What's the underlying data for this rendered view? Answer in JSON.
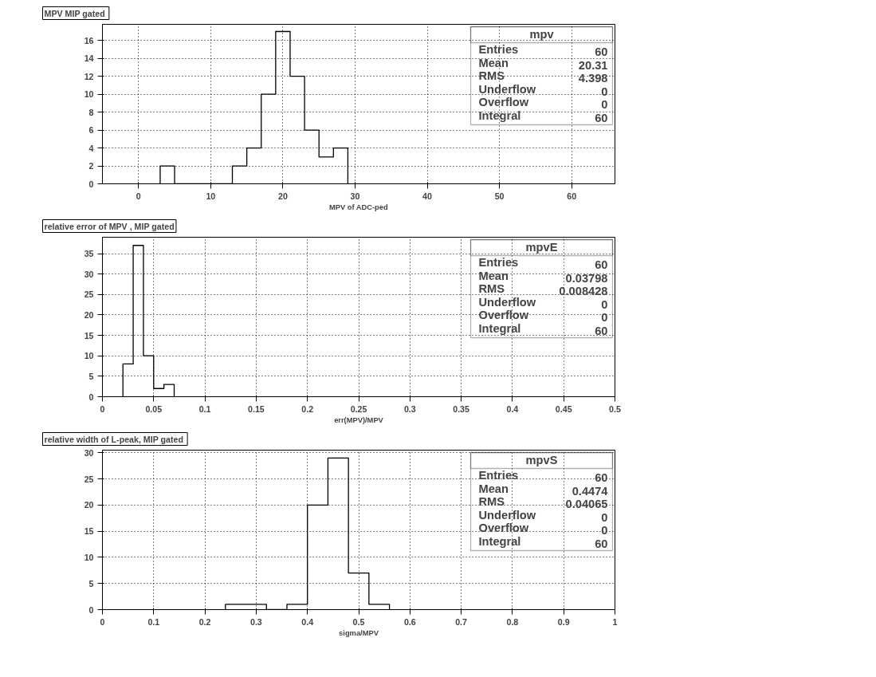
{
  "chart_data": [
    {
      "type": "histogram",
      "title": "MPV  MIP gated",
      "xlabel": "MPV of ADC-ped",
      "bins": [
        3,
        5,
        7,
        9,
        11,
        13,
        15,
        17,
        19,
        21,
        23,
        25,
        27,
        29
      ],
      "values": [
        2,
        0,
        0,
        0,
        0,
        2,
        4,
        10,
        17,
        12,
        6,
        3,
        4
      ],
      "color": "#000000",
      "xlim": [
        -5,
        66
      ],
      "ylim": [
        0,
        17.8
      ],
      "xticks": [
        0,
        10,
        20,
        30,
        40,
        50,
        60
      ],
      "yticks": [
        0,
        2,
        4,
        6,
        8,
        10,
        12,
        14,
        16
      ],
      "grid": true,
      "annotations": [
        "mpv",
        "Entries 60",
        "Mean 20.31",
        "RMS 4.398",
        "Underflow 0",
        "Overflow 0",
        "Integral 60"
      ]
    },
    {
      "type": "histogram",
      "title": "relative error of MPV , MIP gated",
      "xlabel": "err(MPV)/MPV",
      "bins": [
        0.02,
        0.03,
        0.04,
        0.05,
        0.06,
        0.07
      ],
      "values": [
        8,
        37,
        10,
        2,
        3
      ],
      "color": "#000000",
      "xlim": [
        0,
        0.5
      ],
      "ylim": [
        0,
        39
      ],
      "xticks": [
        0,
        0.05,
        0.1,
        0.15,
        0.2,
        0.25,
        0.3,
        0.35,
        0.4,
        0.45,
        0.5
      ],
      "yticks": [
        0,
        5,
        10,
        15,
        20,
        25,
        30,
        35
      ],
      "grid": true,
      "annotations": [
        "mpvE",
        "Entries 60",
        "Mean 0.03798",
        "RMS 0.008428",
        "Underflow 0",
        "Overflow 0",
        "Integral 60"
      ]
    },
    {
      "type": "histogram",
      "title": "relative width of L-peak,  MIP gated",
      "xlabel": "sigma/MPV",
      "bins": [
        0.24,
        0.28,
        0.32,
        0.36,
        0.4,
        0.44,
        0.48,
        0.52,
        0.56
      ],
      "values": [
        1,
        1,
        0,
        1,
        20,
        29,
        7,
        1
      ],
      "color": "#000000",
      "xlim": [
        0,
        1
      ],
      "ylim": [
        0,
        30.5
      ],
      "xticks": [
        0,
        0.1,
        0.2,
        0.3,
        0.4,
        0.5,
        0.6,
        0.7,
        0.8,
        0.9,
        1
      ],
      "yticks": [
        0,
        5,
        10,
        15,
        20,
        25,
        30
      ],
      "grid": true,
      "annotations": [
        "mpvS",
        "Entries 60",
        "Mean 0.4474",
        "RMS 0.04065",
        "Underflow 0",
        "Overflow 0",
        "Integral 60"
      ]
    }
  ]
}
